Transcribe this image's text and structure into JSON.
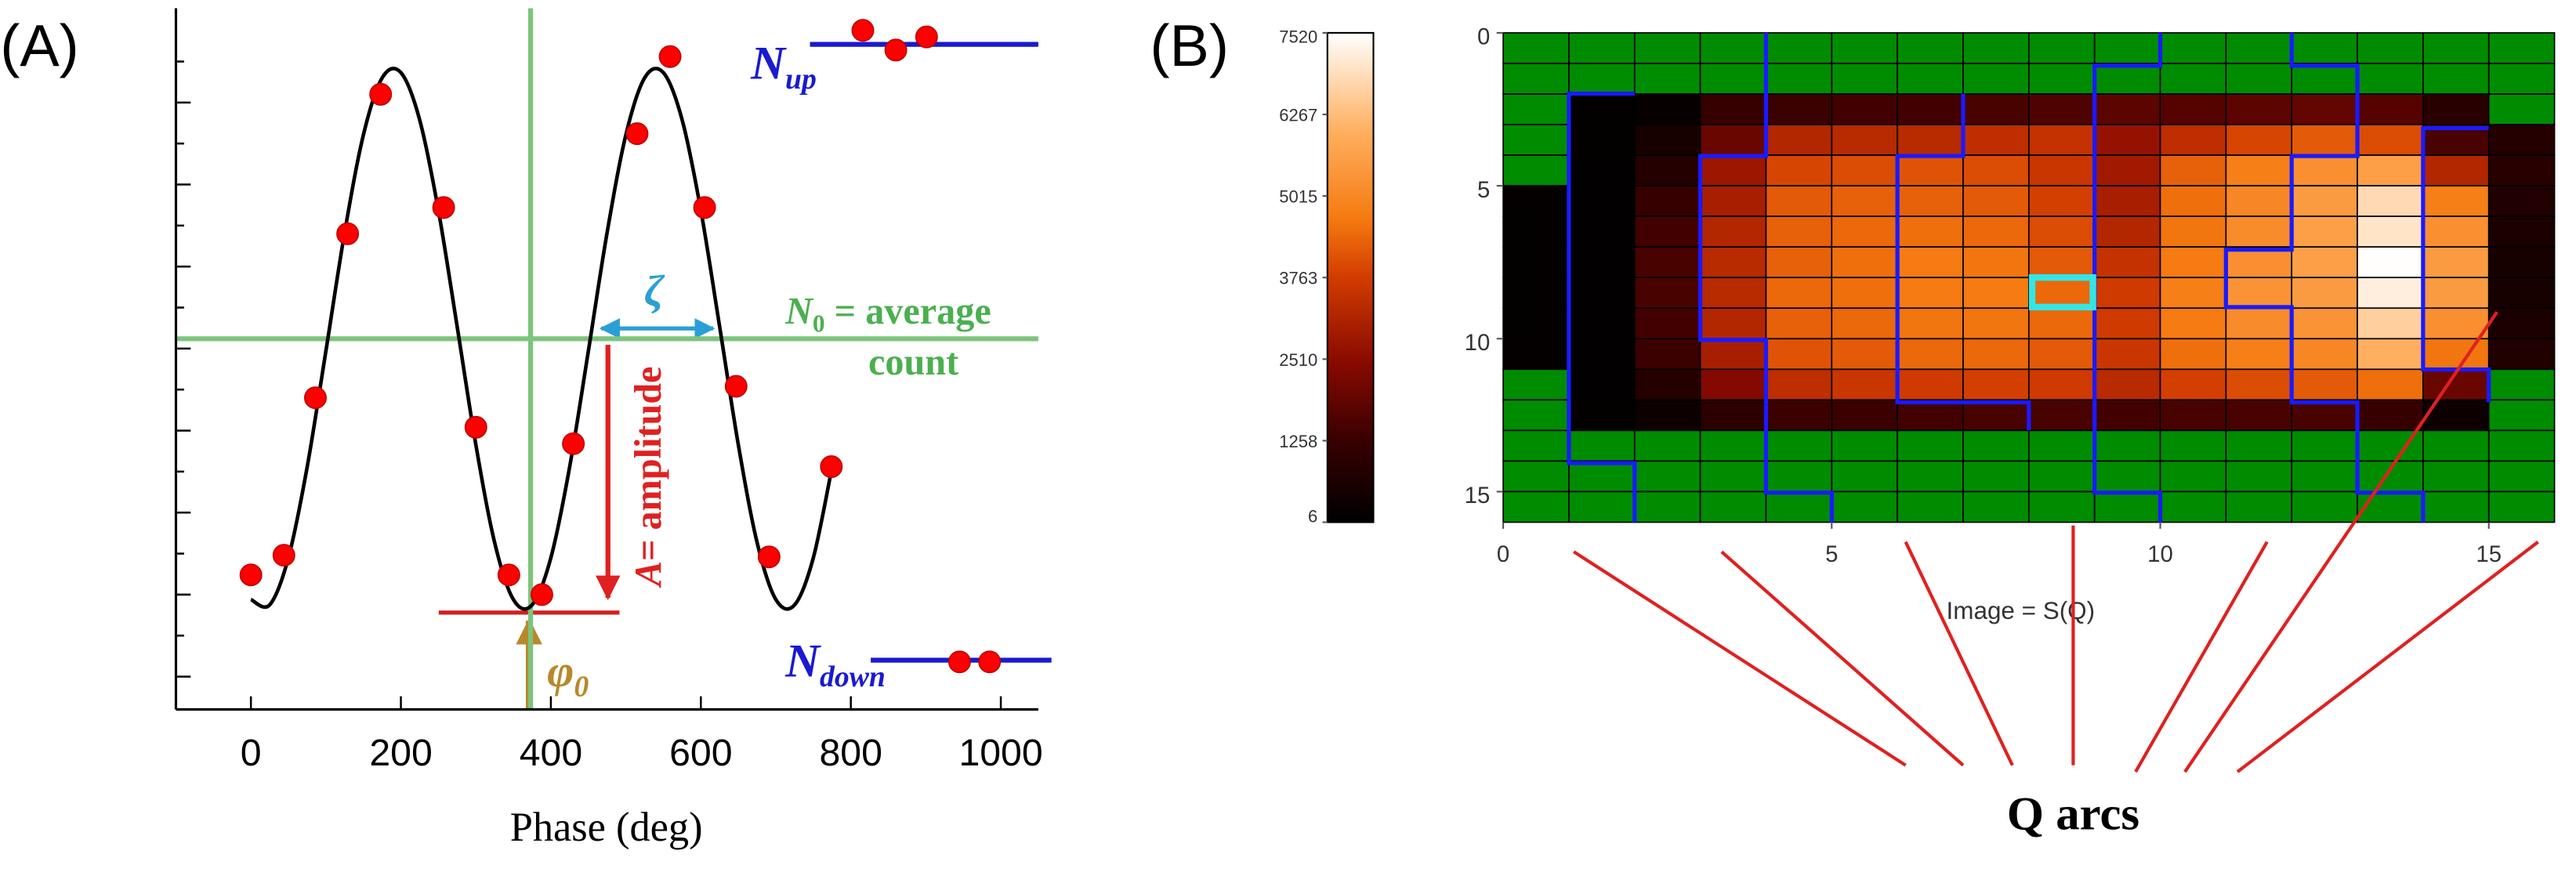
{
  "chart_data": [
    {
      "type": "scatter",
      "panel_label": "(A)",
      "xlabel": "Phase (deg)",
      "xlim": [
        -100,
        1050
      ],
      "xticks": [
        0,
        200,
        400,
        600,
        800,
        1000
      ],
      "ylim": [
        -0.8,
        16.3
      ],
      "yticks": [
        0,
        1,
        2,
        3,
        4,
        5,
        6,
        7,
        8,
        9,
        10,
        11,
        12,
        13,
        14,
        15
      ],
      "ytick_labels": false,
      "series": [
        {
          "type": "line",
          "color": "#000000",
          "x": [
            0,
            25,
            50,
            75,
            100,
            125,
            150,
            175,
            200,
            225,
            250,
            275,
            300,
            325,
            350,
            375,
            400,
            425,
            450,
            475,
            500,
            525,
            550,
            575,
            600,
            625,
            650,
            675,
            700,
            725,
            750,
            775
          ],
          "values": [
            1.88,
            1.75,
            2.9,
            5.11,
            7.94,
            10.83,
            13.21,
            14.6,
            14.73,
            13.58,
            11.37,
            8.54,
            5.65,
            3.27,
            1.88,
            1.75,
            2.9,
            5.11,
            7.94,
            10.83,
            13.21,
            14.6,
            14.73,
            13.58,
            11.37,
            8.54,
            5.65,
            3.27,
            1.88,
            1.75,
            2.9,
            5.11
          ]
        },
        {
          "type": "scatter",
          "color": "#ff0000",
          "x": [
            0,
            44,
            86,
            129,
            173,
            257,
            300,
            344,
            388,
            430,
            515,
            559,
            605,
            647,
            691,
            774
          ],
          "values": [
            2.48,
            2.96,
            6.8,
            10.8,
            14.2,
            11.44,
            6.08,
            2.48,
            2.0,
            5.68,
            13.24,
            15.12,
            11.44,
            7.08,
            2.92,
            5.12
          ]
        },
        {
          "type": "scatter",
          "color": "#ff0000",
          "x": [
            816,
            860,
            901
          ],
          "values": [
            15.76,
            15.28,
            15.6
          ]
        },
        {
          "type": "scatter",
          "color": "#ff0000",
          "x": [
            945,
            985
          ],
          "values": [
            0.36,
            0.36
          ]
        }
      ],
      "reference_lines": {
        "average": 8.24,
        "phi0": 373,
        "color": "#7dc47d"
      },
      "annotations": {
        "nup": {
          "main": "N",
          "sub": "up"
        },
        "ndown": {
          "main": "N",
          "sub": "down"
        },
        "n0": {
          "main": "N",
          "sub": "0",
          "rest": " = average",
          "line2": "count"
        },
        "zeta": "ζ",
        "amplitude": {
          "main": "A",
          "rest": "= amplitude"
        },
        "phi0": {
          "main": "φ",
          "sub": "0"
        }
      }
    },
    {
      "type": "heatmap",
      "panel_label": "(B)",
      "xlabel": "Image = S(Q)",
      "annotation": "Q arcs",
      "xlim": [
        0,
        16
      ],
      "ylim": [
        0,
        16
      ],
      "y_inverted": true,
      "xticks": [
        0,
        5,
        10,
        15
      ],
      "yticks": [
        0,
        5,
        10,
        15
      ],
      "mask_color": "#008c00",
      "zlim": [
        6,
        7520
      ],
      "colorbar_ticks": [
        6,
        1258,
        2510,
        3763,
        5015,
        6267,
        7520
      ],
      "colormap": [
        [
          0,
          "#000000"
        ],
        [
          0.17,
          "#3a0000"
        ],
        [
          0.33,
          "#8a0a00"
        ],
        [
          0.5,
          "#d23c00"
        ],
        [
          0.62,
          "#f57a10"
        ],
        [
          0.8,
          "#ffb060"
        ],
        [
          1,
          "#ffffff"
        ]
      ],
      "values": [
        [
          null,
          null,
          null,
          null,
          null,
          null,
          null,
          null,
          null,
          null,
          null,
          null,
          null,
          null,
          null,
          null
        ],
        [
          null,
          null,
          null,
          null,
          null,
          null,
          null,
          null,
          null,
          null,
          null,
          null,
          null,
          null,
          null,
          null
        ],
        [
          null,
          100,
          150,
          1200,
          1300,
          1400,
          1400,
          1500,
          1600,
          1800,
          1700,
          1800,
          1900,
          1700,
          900,
          null
        ],
        [
          null,
          80,
          500,
          2000,
          3200,
          3300,
          3300,
          3400,
          3500,
          2700,
          3400,
          3900,
          4200,
          4000,
          1500,
          800
        ],
        [
          null,
          60,
          800,
          2800,
          3900,
          4000,
          4100,
          4000,
          3600,
          2900,
          4300,
          4800,
          5200,
          5600,
          3200,
          900
        ],
        [
          100,
          50,
          1200,
          3000,
          4200,
          4300,
          4300,
          4200,
          3800,
          3000,
          4500,
          5000,
          5500,
          6800,
          4800,
          700
        ],
        [
          80,
          40,
          1400,
          3200,
          4300,
          4400,
          4500,
          4400,
          4000,
          3200,
          4600,
          5100,
          5600,
          7000,
          5200,
          600
        ],
        [
          70,
          40,
          1500,
          3300,
          4300,
          4500,
          4700,
          4600,
          4200,
          3500,
          4700,
          5200,
          5600,
          7500,
          5500,
          500
        ],
        [
          70,
          40,
          1500,
          3300,
          4400,
          4500,
          4700,
          4700,
          4400,
          3700,
          4800,
          5300,
          5500,
          7200,
          5500,
          500
        ],
        [
          80,
          40,
          1400,
          3200,
          4300,
          4400,
          4600,
          4600,
          4400,
          3700,
          4700,
          5100,
          5300,
          6600,
          5200,
          600
        ],
        [
          100,
          50,
          1300,
          3000,
          4100,
          4200,
          4400,
          4400,
          4200,
          3600,
          4500,
          4800,
          5000,
          6000,
          4600,
          700
        ],
        [
          null,
          60,
          800,
          2400,
          3400,
          3600,
          3700,
          3800,
          3700,
          3300,
          3800,
          4000,
          4200,
          4500,
          2000,
          null
        ],
        [
          null,
          80,
          300,
          1000,
          1300,
          1300,
          1400,
          1500,
          1500,
          1400,
          1500,
          1500,
          1500,
          1200,
          300,
          null
        ],
        [
          null,
          null,
          null,
          null,
          null,
          null,
          null,
          null,
          null,
          null,
          null,
          null,
          null,
          null,
          null,
          null
        ],
        [
          null,
          null,
          null,
          null,
          null,
          null,
          null,
          null,
          null,
          null,
          null,
          null,
          null,
          null,
          null,
          null
        ],
        [
          null,
          null,
          null,
          null,
          null,
          null,
          null,
          null,
          null,
          null,
          null,
          null,
          null,
          null,
          null,
          null
        ]
      ]
    }
  ]
}
